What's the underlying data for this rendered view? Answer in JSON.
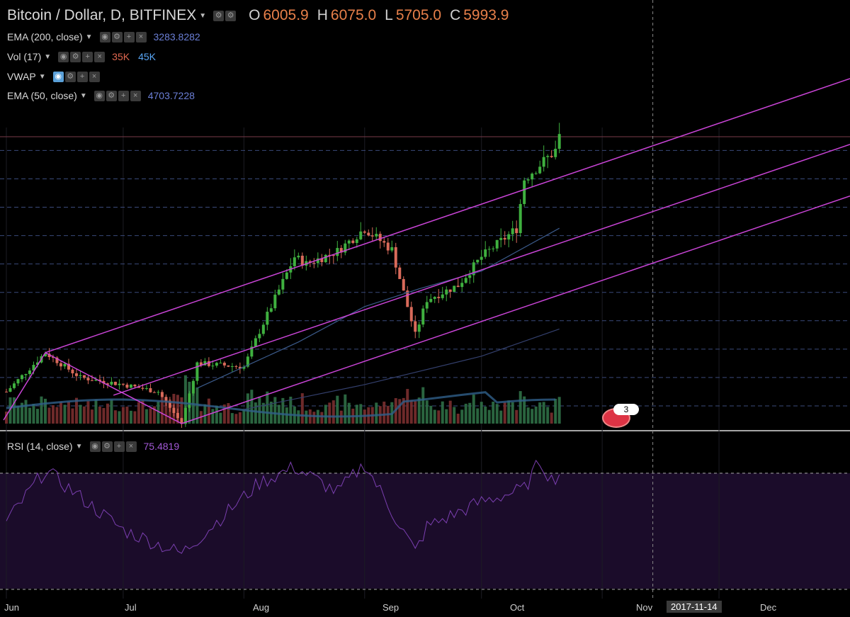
{
  "header": {
    "symbol": "Bitcoin / Dollar, D, BITFINEX",
    "o_label": "O",
    "o_value": "6005.9",
    "h_label": "H",
    "h_value": "6075.0",
    "l_label": "L",
    "l_value": "5705.0",
    "c_label": "C",
    "c_value": "5993.9"
  },
  "indicators": {
    "ema200": {
      "name": "EMA (200, close)",
      "value": "3283.8282"
    },
    "vol": {
      "name": "Vol (17)",
      "value1": "35K",
      "value2": "45K"
    },
    "vwap": {
      "name": "VWAP"
    },
    "ema50": {
      "name": "EMA (50, close)",
      "value": "4703.7228"
    },
    "rsi": {
      "name": "RSI (14, close)",
      "value": "75.4819"
    }
  },
  "toolbar_icons": [
    "eye-icon",
    "gear-icon",
    "plus-icon",
    "close-icon"
  ],
  "badge": {
    "count": "3"
  },
  "x_axis": {
    "labels": [
      "Jun",
      "Jul",
      "Aug",
      "Sep",
      "Oct",
      "Nov",
      "2017-11-14",
      "Dec"
    ],
    "highlight": "2017-11-14"
  },
  "colors": {
    "up": "#3fb03f",
    "down": "#d96a5a",
    "channel": "#c944d6",
    "ema": "#3b5a8a",
    "rsi": "#7b3fb0",
    "grid": "#3a4a7a"
  },
  "chart_data": {
    "type": "candlestick",
    "title": "Bitcoin / Dollar, D, BITFINEX",
    "x_range": [
      "2017-06-01",
      "2017-12-31"
    ],
    "y_range_approx": [
      2100,
      6200
    ],
    "close_series_approx": {
      "dates": [
        "2017-06-01",
        "2017-06-11",
        "2017-06-20",
        "2017-07-01",
        "2017-07-10",
        "2017-07-16",
        "2017-07-20",
        "2017-08-01",
        "2017-08-05",
        "2017-08-14",
        "2017-08-17",
        "2017-08-25",
        "2017-09-01",
        "2017-09-08",
        "2017-09-14",
        "2017-09-17",
        "2017-09-25",
        "2017-10-01",
        "2017-10-10",
        "2017-10-12",
        "2017-10-16",
        "2017-10-20",
        "2017-10-21"
      ],
      "values": [
        2400,
        2950,
        2600,
        2500,
        2400,
        1950,
        2800,
        2750,
        3250,
        4300,
        4200,
        4380,
        4700,
        4400,
        3200,
        3700,
        3900,
        4300,
        4700,
        5400,
        5600,
        5800,
        5994
      ]
    },
    "ema50_approx": {
      "dates": [
        "2017-07-20",
        "2017-08-15",
        "2017-09-01",
        "2017-09-15",
        "2017-10-01",
        "2017-10-21"
      ],
      "values": [
        2450,
        3100,
        3600,
        3850,
        4100,
        4704
      ]
    },
    "ema200_approx": {
      "dates": [
        "2017-08-01",
        "2017-09-01",
        "2017-10-01",
        "2017-10-21"
      ],
      "values": [
        2150,
        2500,
        2900,
        3284
      ]
    },
    "rsi": {
      "name": "RSI (14, close)",
      "levels": [
        70,
        30
      ],
      "dates": [
        "2017-06-01",
        "2017-06-11",
        "2017-07-01",
        "2017-07-16",
        "2017-08-05",
        "2017-08-14",
        "2017-08-25",
        "2017-09-01",
        "2017-09-14",
        "2017-09-17",
        "2017-10-01",
        "2017-10-12",
        "2017-10-16",
        "2017-10-19",
        "2017-10-21"
      ],
      "values": [
        45,
        78,
        40,
        25,
        70,
        80,
        64,
        82,
        26,
        42,
        58,
        66,
        84,
        72,
        75.5
      ]
    }
  }
}
